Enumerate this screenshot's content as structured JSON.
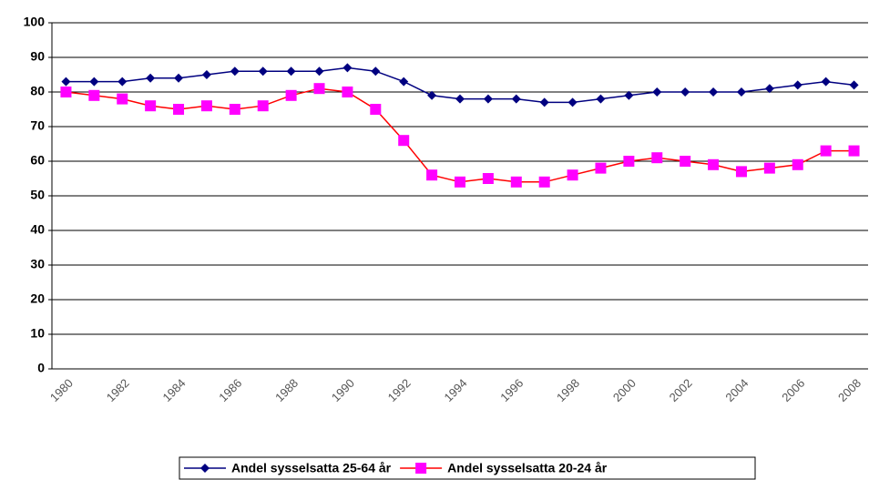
{
  "chart_data": {
    "type": "line",
    "categories": [
      "1980",
      null,
      "1982",
      null,
      "1984",
      null,
      "1986",
      null,
      "1988",
      null,
      "1990",
      null,
      "1992",
      null,
      "1994",
      null,
      "1996",
      null,
      "1998",
      null,
      "2000",
      null,
      "2002",
      null,
      "2004",
      null,
      "2006",
      null,
      "2008"
    ],
    "series": [
      {
        "name": "Andel sysselsatta 25-64 år",
        "color": "#000080",
        "marker": "diamond",
        "marker_color": "#000080",
        "values": [
          83,
          83,
          83,
          84,
          84,
          85,
          86,
          86,
          86,
          86,
          87,
          86,
          83,
          79,
          78,
          78,
          78,
          77,
          77,
          78,
          79,
          80,
          80,
          80,
          80,
          81,
          82,
          83,
          82
        ]
      },
      {
        "name": "Andel sysselsatta 20-24 år",
        "color": "#ff0000",
        "marker": "square",
        "marker_color": "#ff00ff",
        "values": [
          80,
          79,
          78,
          76,
          75,
          76,
          75,
          76,
          79,
          81,
          80,
          75,
          66,
          56,
          54,
          55,
          54,
          54,
          56,
          58,
          60,
          61,
          60,
          59,
          57,
          58,
          59,
          63,
          63
        ]
      }
    ],
    "ylim": [
      0,
      100
    ],
    "yticks": [
      0,
      10,
      20,
      30,
      40,
      50,
      60,
      70,
      80,
      90,
      100
    ],
    "grid": true,
    "legend": "bottom"
  }
}
